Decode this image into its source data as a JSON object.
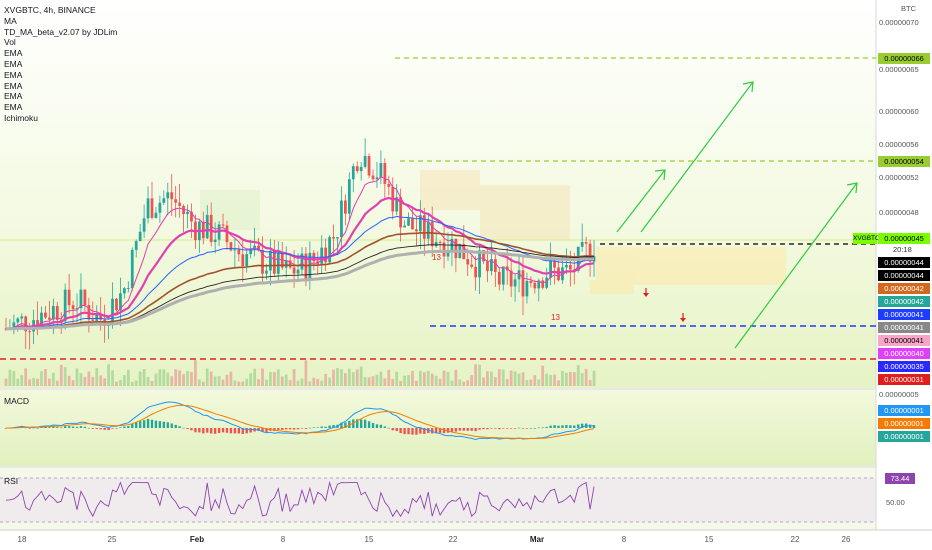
{
  "header": {
    "symbol_title": "XVGBTC, 4h, BINANCE",
    "indicators": [
      "MA",
      "TD_MA_beta_v2.07 by JDLim",
      "Vol",
      "EMA",
      "EMA",
      "EMA",
      "EMA",
      "EMA",
      "EMA",
      "Ichimoku"
    ]
  },
  "panes": {
    "macd_label": "MACD",
    "rsi_label": "RSI"
  },
  "axis": {
    "currency": "BTC",
    "countdown": "20:18",
    "ticker_tag": "XVGBTC"
  },
  "colors": {
    "background_gradient": "#eef7d2",
    "up_candle": "#26a69a",
    "down_candle": "#ef5350",
    "ema_pink": "#e040b0",
    "ema_blue": "#2962ff",
    "ema_brown": "#a0522d",
    "ema_black": "#222222",
    "ema_gray": "#b0b0b0",
    "target_dash": "#9acd32",
    "arrow_green": "#2ecc40",
    "support_blue": "#1e3cff",
    "support_red": "#e01e1e",
    "rsi_line": "#8e44ad"
  },
  "chart_data": {
    "type": "candlestick",
    "title": "XVGBTC, 4h, BINANCE",
    "y_axis_labels": [
      "0.00000070",
      "0.00000065",
      "0.00000060",
      "0.00000056",
      "0.00000052",
      "0.00000048",
      "0.00000005"
    ],
    "y_range": [
      3e-07,
      7e-07
    ],
    "x_tick_labels": [
      "18",
      "25",
      "Feb",
      "8",
      "15",
      "22",
      "Mar",
      "8",
      "15",
      "22",
      "26"
    ],
    "x_bold_labels": [
      "Feb",
      "Mar"
    ],
    "close_trend_approx": [
      3.6e-07,
      3.7e-07,
      3.8e-07,
      3.9e-07,
      3.7e-07,
      4e-07,
      4.9e-07,
      5e-07,
      4.7e-07,
      4.6e-07,
      4.4e-07,
      4.3e-07,
      4.2e-07,
      4.3e-07,
      4.6e-07,
      5.5e-07,
      5.2e-07,
      4.7e-07,
      4.6e-07,
      4.5e-07,
      4.3e-07,
      4.1e-07,
      4.1e-07,
      4.2e-07,
      4.2e-07,
      4.5e-07
    ],
    "price_tags": [
      {
        "value": "0.00000066",
        "kind": "target",
        "bg": "#9acd32",
        "fg": "#000"
      },
      {
        "value": "0.00000054",
        "kind": "target",
        "bg": "#9acd32",
        "fg": "#000"
      },
      {
        "value": "0.00000045",
        "kind": "last",
        "bg": "#7cfc00",
        "fg": "#000"
      },
      {
        "value": "0.00000044",
        "kind": "ema",
        "bg": "#000000",
        "fg": "#fff"
      },
      {
        "value": "0.00000044",
        "kind": "ema",
        "bg": "#000000",
        "fg": "#fff"
      },
      {
        "value": "0.00000042",
        "kind": "ema",
        "bg": "#d2691e",
        "fg": "#fff"
      },
      {
        "value": "0.00000042",
        "kind": "ema",
        "bg": "#26a69a",
        "fg": "#fff"
      },
      {
        "value": "0.00000041",
        "kind": "ema",
        "bg": "#1e3cff",
        "fg": "#fff"
      },
      {
        "value": "0.00000041",
        "kind": "ema",
        "bg": "#888888",
        "fg": "#fff"
      },
      {
        "value": "0.00000041",
        "kind": "ema",
        "bg": "#f8a5c8",
        "fg": "#000"
      },
      {
        "value": "0.00000040",
        "kind": "ema",
        "bg": "#e040fb",
        "fg": "#fff"
      },
      {
        "value": "0.00000035",
        "kind": "ema",
        "bg": "#2828ff",
        "fg": "#fff"
      },
      {
        "value": "0.00000031",
        "kind": "support",
        "bg": "#e01e1e",
        "fg": "#fff"
      }
    ],
    "macd_tags": [
      {
        "value": "0.00000001",
        "bg": "#2196f3"
      },
      {
        "value": "0.00000001",
        "bg": "#f57c00"
      },
      {
        "value": "0.00000001",
        "bg": "#26a69a"
      }
    ],
    "rsi_value": "73.44",
    "rsi_axis_label": "50.00",
    "td_marks": [
      "13",
      "13"
    ],
    "levels": {
      "target_1": 6.6e-07,
      "target_2": 5.4e-07,
      "current": 4.5e-07,
      "support_blue": 4.1e-07,
      "support_red": 3.1e-07
    }
  }
}
